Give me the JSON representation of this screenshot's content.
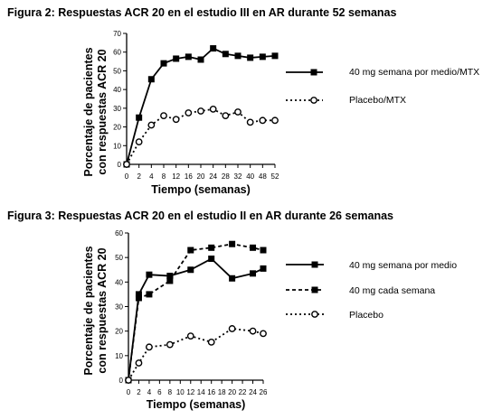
{
  "chart_data": [
    {
      "type": "line",
      "title": "Figura 2: Respuestas ACR 20 en el estudio III en AR durante 52 semanas",
      "ylabel_line1": "Porcentaje de pacientes",
      "ylabel_line2": "con respuestas ACR 20",
      "xlabel": "Tiempo (semanas)",
      "x": [
        "0",
        "2",
        "4",
        "8",
        "12",
        "16",
        "20",
        "24",
        "28",
        "32",
        "40",
        "48",
        "52"
      ],
      "yticks": [
        "0",
        "10",
        "20",
        "30",
        "40",
        "50",
        "60",
        "70"
      ],
      "ylim": [
        0,
        70
      ],
      "grid": false,
      "legend_position": "right",
      "series": [
        {
          "name": "40 mg semana por medio/MTX",
          "style": "solid-filled-square",
          "values": [
            0,
            25,
            45.5,
            54,
            56.5,
            57.5,
            56,
            62,
            59,
            58,
            57,
            57.5,
            58
          ]
        },
        {
          "name": "Placebo/MTX",
          "style": "dotted-open-circle",
          "values": [
            0,
            12,
            21,
            26,
            24,
            27.5,
            28.5,
            29.5,
            26,
            28,
            22.5,
            23.5,
            23.5
          ]
        }
      ]
    },
    {
      "type": "line",
      "title": "Figura 3: Respuestas ACR 20 en el estudio II en AR durante 26 semanas",
      "ylabel_line1": "Porcentaje de pacientes",
      "ylabel_line2": "con respuestas ACR 20",
      "xlabel": "Tiempo  (semanas)",
      "x": [
        "0",
        "2",
        "4",
        "6",
        "8",
        "10",
        "12",
        "14",
        "16",
        "18",
        "20",
        "22",
        "24",
        "26"
      ],
      "yticks": [
        "0",
        "10",
        "20",
        "30",
        "40",
        "50",
        "60"
      ],
      "ylim": [
        0,
        60
      ],
      "grid": false,
      "legend_position": "right",
      "series": [
        {
          "name": "40 mg semana por medio",
          "style": "solid-filled-square",
          "values": [
            0,
            35,
            43,
            null,
            42.5,
            null,
            45,
            null,
            49.5,
            null,
            41.5,
            null,
            43.5,
            45.5
          ]
        },
        {
          "name": "40 mg cada semana",
          "style": "dashed-filled-square",
          "values": [
            0,
            33.5,
            35,
            null,
            40.5,
            null,
            53,
            null,
            54,
            null,
            55.5,
            null,
            54,
            53
          ]
        },
        {
          "name": "Placebo",
          "style": "dotted-open-circle",
          "values": [
            0,
            7,
            13.5,
            null,
            14.5,
            null,
            18,
            null,
            15.5,
            null,
            21,
            null,
            20,
            19
          ]
        }
      ]
    }
  ]
}
